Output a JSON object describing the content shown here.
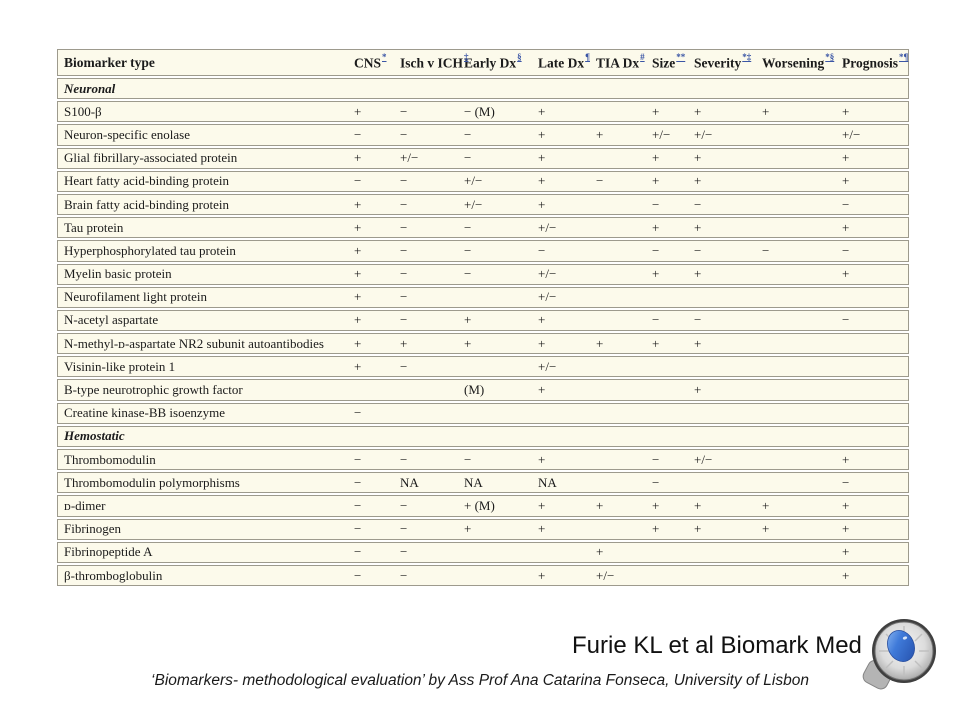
{
  "colors": {
    "table_bg": "#fcfaeb",
    "table_border": "#9d9a8d",
    "footnote_blue": "#3a55a5",
    "text": "#1b1b1b"
  },
  "slide": {
    "credit": "Furie KL et al Biomark Med",
    "caption": "‘Biomarkers- methodological evaluation’ by Ass Prof Ana Catarina Fonseca, University of Lisbon"
  },
  "table": {
    "columns": [
      {
        "label": "Biomarker type",
        "sup": ""
      },
      {
        "label": "CNS",
        "sup": "*"
      },
      {
        "label": "Isch v ICH",
        "sup": "‡"
      },
      {
        "label": "Early Dx",
        "sup": "§"
      },
      {
        "label": "Late Dx",
        "sup": "¶"
      },
      {
        "label": "TIA Dx",
        "sup": "#"
      },
      {
        "label": "Size",
        "sup": "**"
      },
      {
        "label": "Severity",
        "sup": "*‡"
      },
      {
        "label": "Worsening",
        "sup": "*§"
      },
      {
        "label": "Prognosis",
        "sup": "*¶"
      }
    ],
    "rows": [
      {
        "type": "section",
        "name": "Neuronal"
      },
      {
        "type": "data",
        "name": "S100-β",
        "cells": [
          "+",
          "−",
          "− (M)",
          "+",
          "",
          "+",
          "+",
          "+",
          "+"
        ]
      },
      {
        "type": "data",
        "name": "Neuron-specific enolase",
        "cells": [
          "−",
          "−",
          "−",
          "+",
          "+",
          "+/−",
          "+/−",
          "",
          "+/−"
        ]
      },
      {
        "type": "data",
        "name": "Glial fibrillary-associated protein",
        "cells": [
          "+",
          "+/−",
          "−",
          "+",
          "",
          "+",
          "+",
          "",
          "+"
        ]
      },
      {
        "type": "data",
        "name": "Heart fatty acid-binding protein",
        "cells": [
          "−",
          "−",
          "+/−",
          "+",
          "−",
          "+",
          "+",
          "",
          "+"
        ]
      },
      {
        "type": "data",
        "name": "Brain fatty acid-binding protein",
        "cells": [
          "+",
          "−",
          "+/−",
          "+",
          "",
          "−",
          "−",
          "",
          "−"
        ]
      },
      {
        "type": "data",
        "name": "Tau protein",
        "cells": [
          "+",
          "−",
          "−",
          "+/−",
          "",
          "+",
          "+",
          "",
          "+"
        ]
      },
      {
        "type": "data",
        "name": "Hyperphosphorylated tau protein",
        "cells": [
          "+",
          "−",
          "−",
          "−",
          "",
          "−",
          "−",
          "−",
          "−"
        ]
      },
      {
        "type": "data",
        "name": "Myelin basic protein",
        "cells": [
          "+",
          "−",
          "−",
          "+/−",
          "",
          "+",
          "+",
          "",
          "+"
        ]
      },
      {
        "type": "data",
        "name": "Neurofilament light protein",
        "cells": [
          "+",
          "−",
          "",
          "+/−",
          "",
          "",
          "",
          "",
          ""
        ]
      },
      {
        "type": "data",
        "name": "N-acetyl aspartate",
        "cells": [
          "+",
          "−",
          "+",
          "+",
          "",
          "−",
          "−",
          "",
          "−"
        ]
      },
      {
        "type": "data",
        "name": "N-methyl-ᴅ-aspartate NR2 subunit autoantibodies",
        "cells": [
          "+",
          "+",
          "+",
          "+",
          "+",
          "+",
          "+",
          "",
          ""
        ]
      },
      {
        "type": "data",
        "name": "Visinin-like protein 1",
        "cells": [
          "+",
          "−",
          "",
          "+/−",
          "",
          "",
          "",
          "",
          ""
        ]
      },
      {
        "type": "data",
        "name": "B-type neurotrophic growth factor",
        "cells": [
          "",
          "",
          "(M)",
          "+",
          "",
          "",
          "+",
          "",
          ""
        ]
      },
      {
        "type": "data",
        "name": "Creatine kinase-BB isoenzyme",
        "cells": [
          "−",
          "",
          "",
          "",
          "",
          "",
          "",
          "",
          ""
        ]
      },
      {
        "type": "section",
        "name": "Hemostatic"
      },
      {
        "type": "data",
        "name": "Thrombomodulin",
        "cells": [
          "−",
          "−",
          "−",
          "+",
          "",
          "−",
          "+/−",
          "",
          "+"
        ]
      },
      {
        "type": "data",
        "name": "Thrombomodulin polymorphisms",
        "cells": [
          "−",
          "NA",
          "NA",
          "NA",
          "",
          "−",
          "",
          "",
          "−"
        ]
      },
      {
        "type": "data",
        "name": "ᴅ-dimer",
        "cells": [
          "−",
          "−",
          "+ (M)",
          "+",
          "+",
          "+",
          "+",
          "+",
          "+"
        ]
      },
      {
        "type": "data",
        "name": "Fibrinogen",
        "cells": [
          "−",
          "−",
          "+",
          "+",
          "",
          "+",
          "+",
          "+",
          "+"
        ]
      },
      {
        "type": "data",
        "name": "Fibrinopeptide A",
        "cells": [
          "−",
          "−",
          "",
          "",
          "+",
          "",
          "",
          "",
          "+"
        ]
      },
      {
        "type": "data",
        "name": "β-thromboglobulin",
        "cells": [
          "−",
          "−",
          "",
          "+",
          "+/−",
          "",
          "",
          "",
          "+"
        ]
      }
    ]
  }
}
